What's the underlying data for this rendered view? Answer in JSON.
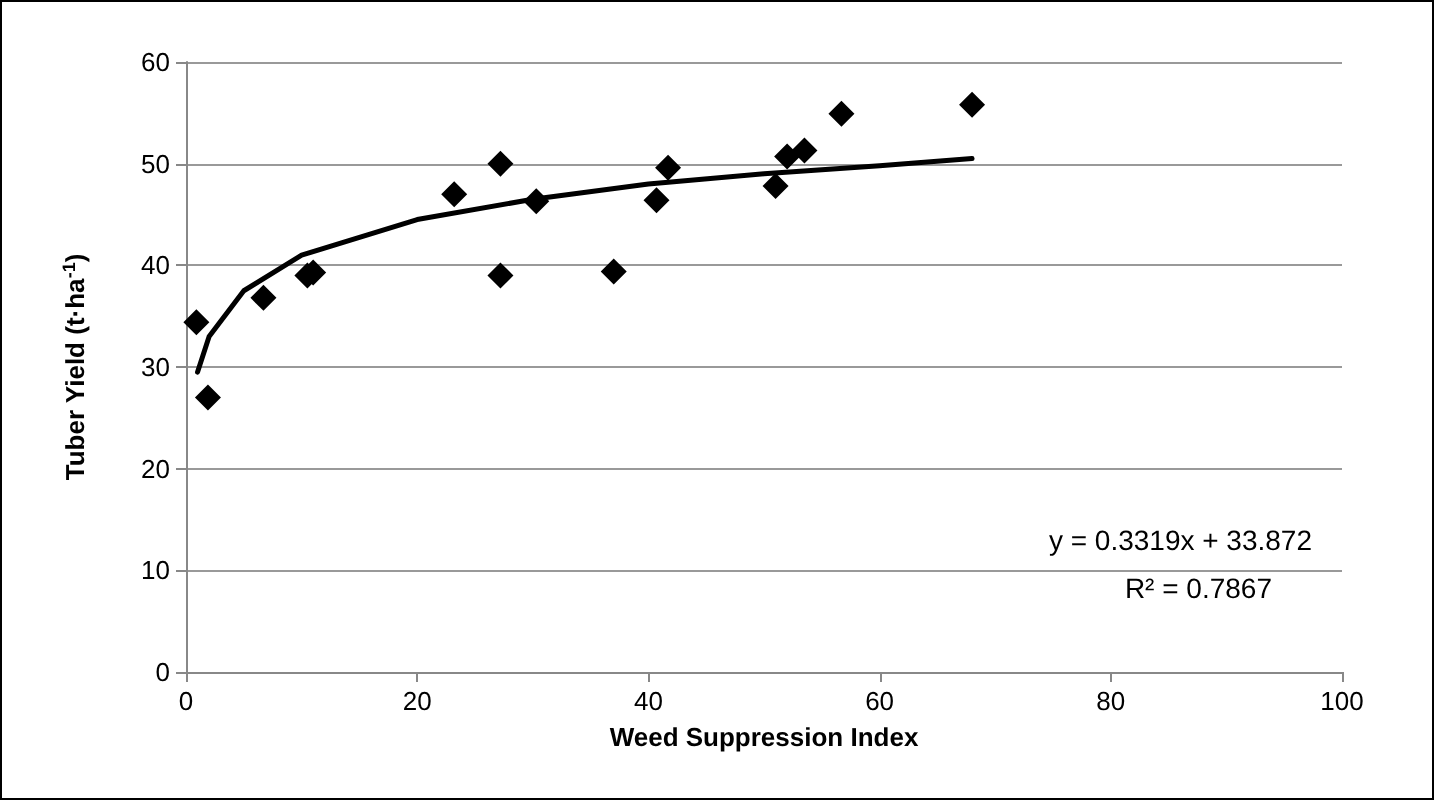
{
  "chart_data": {
    "type": "scatter",
    "xlabel": "Weed Suppression Index",
    "ylabel": "Tuber Yield (t·ha$^{-1}$)",
    "xlim": [
      0,
      100
    ],
    "xticks": [
      0,
      20,
      40,
      60,
      80,
      100
    ],
    "ylim": [
      0,
      60
    ],
    "yticks": [
      0,
      10,
      20,
      30,
      40,
      50,
      60
    ],
    "grid": "y",
    "marker": "diamond",
    "annotations": [
      "y = 0.3319x + 33.872",
      "R² = 0.7867"
    ],
    "series": [
      {
        "color": "#000000",
        "x": [
          0.9,
          1.9,
          6.7,
          10.5,
          11,
          23.2,
          27.2,
          27.2,
          30.3,
          37,
          40.7,
          41.7,
          51,
          52,
          53.5,
          56.7,
          68
        ],
        "values": [
          34.4,
          27,
          36.8,
          39,
          39.3,
          47,
          50,
          39,
          46.3,
          39.4,
          46.4,
          49.6,
          47.8,
          50.7,
          51.3,
          54.9,
          55.8
        ]
      },
      {
        "type": "line",
        "color": "#000000",
        "marker": "none",
        "line_style": "solid",
        "x": [
          1,
          2,
          5,
          10,
          20,
          30,
          40,
          50,
          60,
          68
        ],
        "values": [
          29.5,
          33,
          37.5,
          41,
          44.5,
          46.5,
          48,
          49,
          49.8,
          50.5
        ]
      }
    ]
  }
}
